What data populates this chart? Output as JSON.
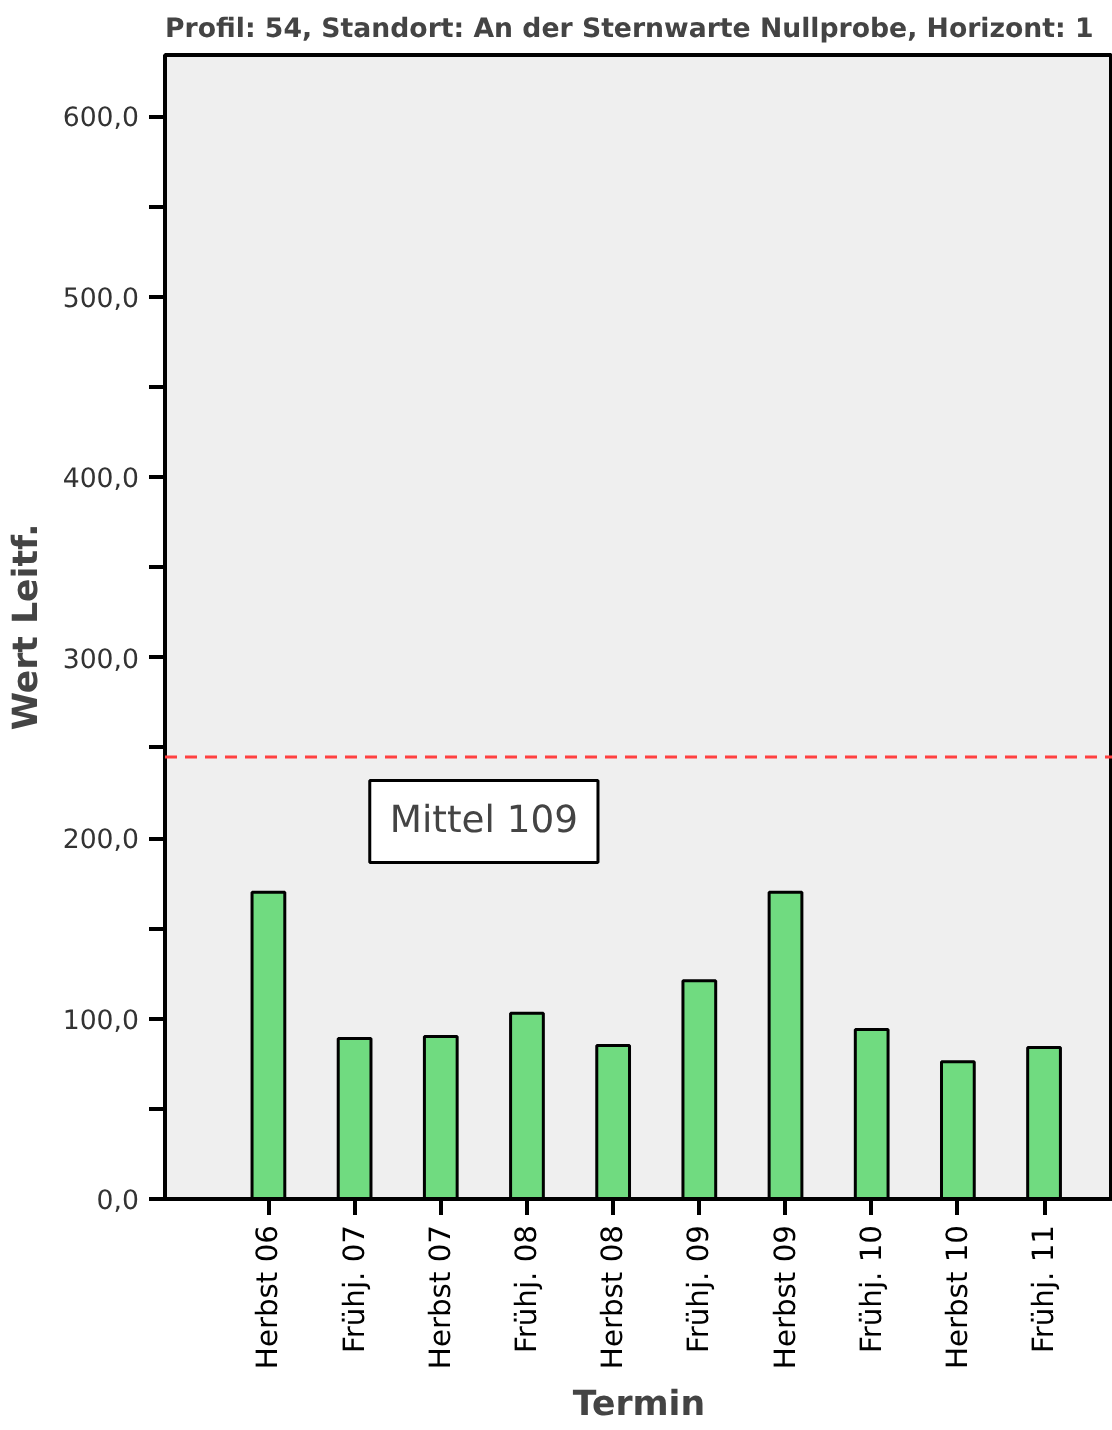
{
  "chart_data": {
    "type": "bar",
    "title": "Profil: 54, Standort: An der Sternwarte Nullprobe, Horizont: 1",
    "xlabel": "Termin",
    "ylabel": "Wert Leitf.",
    "categories": [
      "Herbst 06",
      "Frühj. 07",
      "Herbst 07",
      "Frühj. 08",
      "Herbst 08",
      "Frühj. 09",
      "Herbst 09",
      "Frühj. 10",
      "Herbst 10",
      "Frühj. 11"
    ],
    "values": [
      170,
      89,
      90,
      103,
      85,
      121,
      170,
      94,
      76,
      84
    ],
    "color": "#70db80",
    "ylim": [
      0,
      634
    ],
    "yticks": [
      {
        "value": 0,
        "label": "0,0"
      },
      {
        "value": 50,
        "label": null
      },
      {
        "value": 100,
        "label": "100,0"
      },
      {
        "value": 150,
        "label": null
      },
      {
        "value": 200,
        "label": "200,0"
      },
      {
        "value": 250,
        "label": null
      },
      {
        "value": 300,
        "label": "300,0"
      },
      {
        "value": 350,
        "label": null
      },
      {
        "value": 400,
        "label": "400,0"
      },
      {
        "value": 450,
        "label": null
      },
      {
        "value": 500,
        "label": "500,0"
      },
      {
        "value": 550,
        "label": null
      },
      {
        "value": 600,
        "label": "600,0"
      }
    ],
    "ref_lines": [
      {
        "axis": "y",
        "value": 245,
        "color": "#ff4040",
        "line_style": "dashed"
      }
    ],
    "annotations": [
      "Mittel 109"
    ],
    "grid": false
  }
}
